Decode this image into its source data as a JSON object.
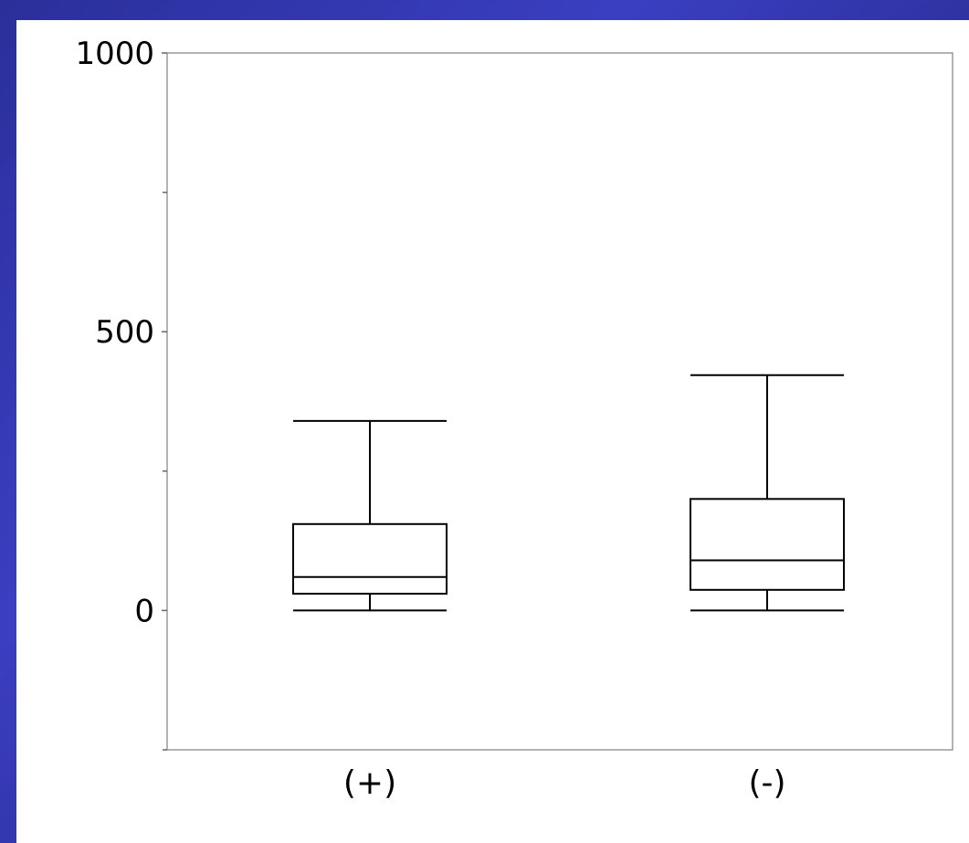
{
  "chart_data": {
    "type": "box",
    "title": "",
    "xlabel": "",
    "ylabel": "",
    "ylim": [
      -250,
      1000
    ],
    "yticks_major": [
      0,
      500,
      1000
    ],
    "yticks_minor": [
      -250,
      250,
      750
    ],
    "ytick_labels": [
      "0",
      "500",
      "1000"
    ],
    "categories": [
      "(+)",
      "(-)"
    ],
    "boxes": [
      {
        "category": "(+)",
        "min": 0,
        "q1": 30,
        "median": 60,
        "q3": 155,
        "max": 340
      },
      {
        "category": "(-)",
        "min": 0,
        "q1": 37,
        "median": 90,
        "q3": 200,
        "max": 422
      }
    ],
    "grid": false,
    "colors": {
      "background": "#2b2f98",
      "plot": "#ffffff",
      "stroke": "#000000",
      "frame": "#9a9a9a"
    }
  }
}
